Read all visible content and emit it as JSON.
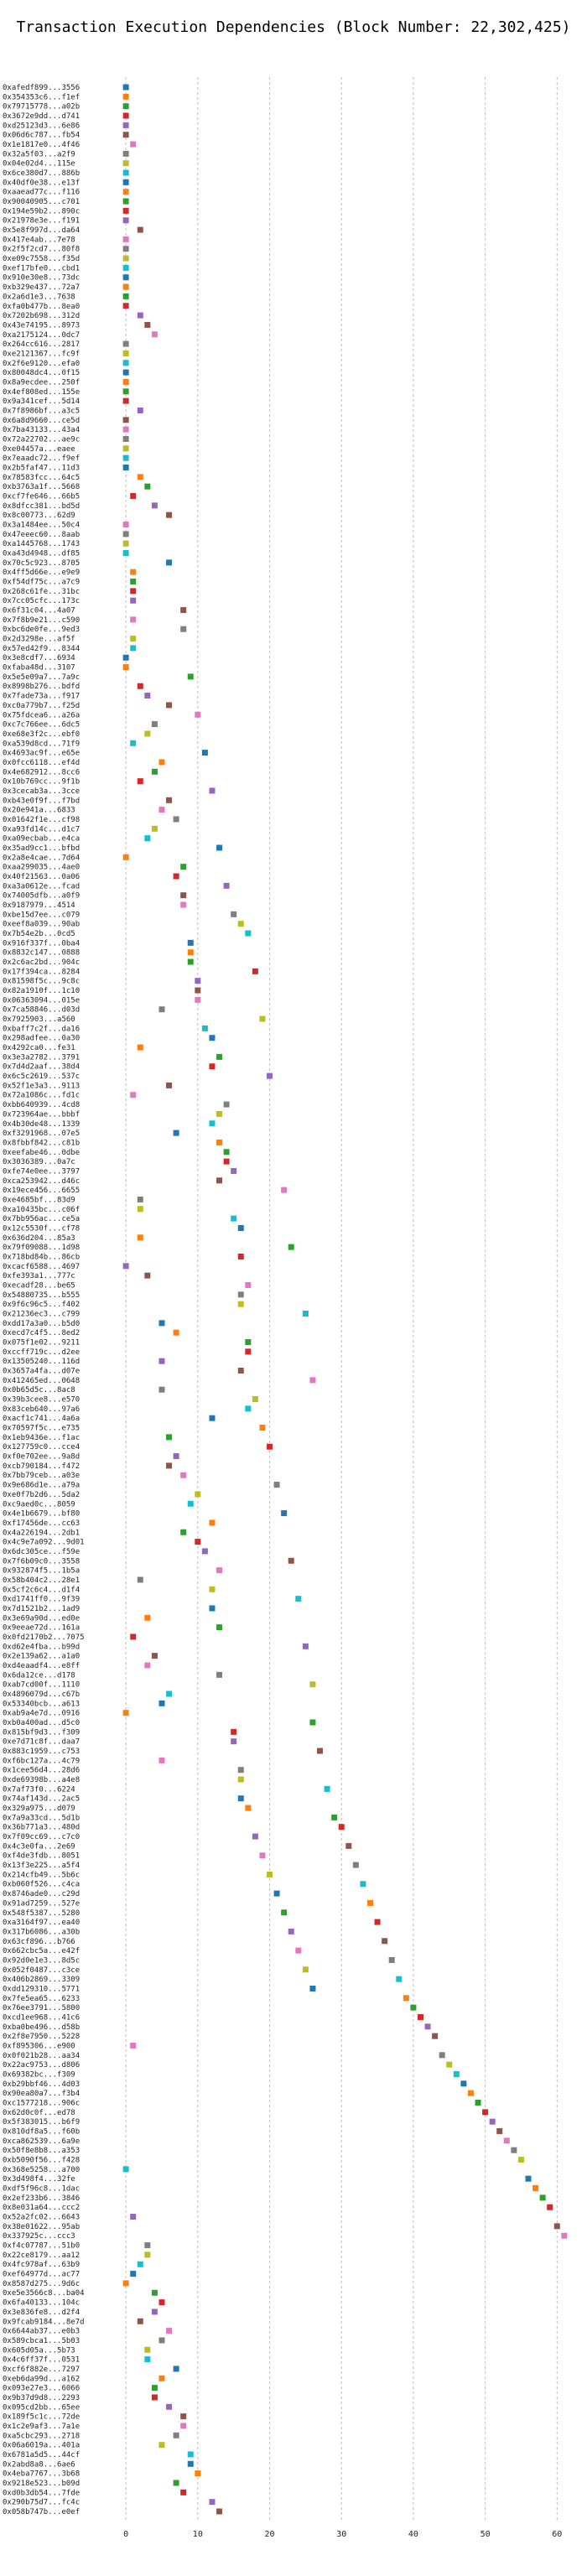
{
  "chart_data": {
    "type": "scatter",
    "title": "Transaction Execution Dependencies (Block Number: 22,302,425)",
    "xlabel": "",
    "ylabel": "",
    "xlim": [
      -2,
      63
    ],
    "xticks": [
      0,
      10,
      20,
      30,
      40,
      50,
      60
    ],
    "grid": true,
    "palette": [
      "#1f77b4",
      "#ff7f0e",
      "#2ca02c",
      "#d62728",
      "#9467bd",
      "#8c564b",
      "#e377c2",
      "#7f7f7f",
      "#bcbd22",
      "#17becf"
    ],
    "transactions": [
      {
        "label": "0xafedf899...3556",
        "x": 0
      },
      {
        "label": "0x354353c6...f1ef",
        "x": 0
      },
      {
        "label": "0x79715778...a02b",
        "x": 0
      },
      {
        "label": "0x3672e9dd...d741",
        "x": 0
      },
      {
        "label": "0xd25123d3...6e86",
        "x": 0
      },
      {
        "label": "0x06d6c787...fb54",
        "x": 0
      },
      {
        "label": "0x1e1817e0...4f46",
        "x": 1
      },
      {
        "label": "0x32a5f03...a2f9",
        "x": 0
      },
      {
        "label": "0x04e02d4...115e",
        "x": 0
      },
      {
        "label": "0x6ce380d7...886b",
        "x": 0
      },
      {
        "label": "0x40df0e38...e13f",
        "x": 0
      },
      {
        "label": "0xaaead77c...f116",
        "x": 0
      },
      {
        "label": "0x90040905...c701",
        "x": 0
      },
      {
        "label": "0x194e59b2...890c",
        "x": 0
      },
      {
        "label": "0x21978e3e...f191",
        "x": 0
      },
      {
        "label": "0x5e8f997d...da64",
        "x": 2
      },
      {
        "label": "0x417e4ab...7e78",
        "x": 0
      },
      {
        "label": "0x2f5f2cd7...80f8",
        "x": 0
      },
      {
        "label": "0xe09c7558...f35d",
        "x": 0
      },
      {
        "label": "0xef17bfe0...cbd1",
        "x": 0
      },
      {
        "label": "0x910e30e8...73dc",
        "x": 0
      },
      {
        "label": "0xb329e437...72a7",
        "x": 0
      },
      {
        "label": "0x2a6d1e3...7638",
        "x": 0
      },
      {
        "label": "0xfa0b477b...8ea0",
        "x": 0
      },
      {
        "label": "0x7202b698...312d",
        "x": 2
      },
      {
        "label": "0x43e74195...8973",
        "x": 3
      },
      {
        "label": "0xa2175124...0dc7",
        "x": 4
      },
      {
        "label": "0x264cc616...2817",
        "x": 0
      },
      {
        "label": "0xe2121367...fc9f",
        "x": 0
      },
      {
        "label": "0x2f6e9120...efa0",
        "x": 0
      },
      {
        "label": "0x80048dc4...0f15",
        "x": 0
      },
      {
        "label": "0x8a9ecdee...250f",
        "x": 0
      },
      {
        "label": "0x4ef808ed...155e",
        "x": 0
      },
      {
        "label": "0x9a341cef...5d14",
        "x": 0
      },
      {
        "label": "0x7f8986bf...a3c5",
        "x": 2
      },
      {
        "label": "0x6a8d9660...ce5d",
        "x": 0
      },
      {
        "label": "0x7ba43133...43a4",
        "x": 0
      },
      {
        "label": "0x72a22702...ae9c",
        "x": 0
      },
      {
        "label": "0xe04457a...eaee",
        "x": 0
      },
      {
        "label": "0x7eaadc72...f9ef",
        "x": 0
      },
      {
        "label": "0x2b5faf47...11d3",
        "x": 0
      },
      {
        "label": "0x78583fcc...64c5",
        "x": 2
      },
      {
        "label": "0xb3763a1f...5668",
        "x": 3
      },
      {
        "label": "0xcf7fe646...66b5",
        "x": 1
      },
      {
        "label": "0x8dfcc381...bd5d",
        "x": 4
      },
      {
        "label": "0x8c00773...62d9",
        "x": 6
      },
      {
        "label": "0x3a1484ee...50c4",
        "x": 0
      },
      {
        "label": "0x47eeec60...8aab",
        "x": 0
      },
      {
        "label": "0xa1445768...1743",
        "x": 0
      },
      {
        "label": "0xa43d4948...df85",
        "x": 0
      },
      {
        "label": "0x70c5c923...8705",
        "x": 6
      },
      {
        "label": "0x4ff5d66e...e9e9",
        "x": 1
      },
      {
        "label": "0xf54df75c...a7c9",
        "x": 1
      },
      {
        "label": "0x268c61fe...31bc",
        "x": 1
      },
      {
        "label": "0x7cc05cfc...173c",
        "x": 1
      },
      {
        "label": "0x6f31c04...4a07",
        "x": 8
      },
      {
        "label": "0x7f8b9e21...c590",
        "x": 1
      },
      {
        "label": "0xbc6de0fe...9ed3",
        "x": 8
      },
      {
        "label": "0x2d3298e...af5f",
        "x": 1
      },
      {
        "label": "0x57ed42f9...8344",
        "x": 1
      },
      {
        "label": "0x3e8cdf7...6934",
        "x": 0
      },
      {
        "label": "0xfaba48d...3107",
        "x": 0
      },
      {
        "label": "0x5e5e09a7...7a9c",
        "x": 9
      },
      {
        "label": "0x8998b276...bdfd",
        "x": 2
      },
      {
        "label": "0x7fade73a...f917",
        "x": 3
      },
      {
        "label": "0xc0a779b7...f25d",
        "x": 6
      },
      {
        "label": "0x75fdcea6...a26a",
        "x": 10
      },
      {
        "label": "0xc7c766ee...6dc5",
        "x": 4
      },
      {
        "label": "0xe68e3f2c...ebf0",
        "x": 3
      },
      {
        "label": "0xa539d8cd...71f9",
        "x": 1
      },
      {
        "label": "0x4693ac9f...e65e",
        "x": 11
      },
      {
        "label": "0x0fcc6118...ef4d",
        "x": 5
      },
      {
        "label": "0x4e682912...8cc6",
        "x": 4
      },
      {
        "label": "0x10b769cc...9f1b",
        "x": 2
      },
      {
        "label": "0x3cecab3a...3cce",
        "x": 12
      },
      {
        "label": "0xb43e0f9f...f7bd",
        "x": 6
      },
      {
        "label": "0x20e941a...6833",
        "x": 5
      },
      {
        "label": "0x01642f1e...cf98",
        "x": 7
      },
      {
        "label": "0xa93fd14c...d1c7",
        "x": 4
      },
      {
        "label": "0xa09ecbab...e4ca",
        "x": 3
      },
      {
        "label": "0x35ad9cc1...bfbd",
        "x": 13
      },
      {
        "label": "0x2a8e4cae...7d64",
        "x": 0
      },
      {
        "label": "0xaa299035...4ae0",
        "x": 8
      },
      {
        "label": "0x40f21563...0a06",
        "x": 7
      },
      {
        "label": "0xa3a0612e...fcad",
        "x": 14
      },
      {
        "label": "0x74005dfb...a0f9",
        "x": 8
      },
      {
        "label": "0x9187979...4514",
        "x": 8
      },
      {
        "label": "0xbe15d7ee...c079",
        "x": 15
      },
      {
        "label": "0xeef8a039...90ab",
        "x": 16
      },
      {
        "label": "0x7b54e2b...0cd5",
        "x": 17
      },
      {
        "label": "0x916f337f...0ba4",
        "x": 9
      },
      {
        "label": "0x8832c147...0888",
        "x": 9
      },
      {
        "label": "0x2c6ac2bd...904c",
        "x": 9
      },
      {
        "label": "0x17f394ca...8284",
        "x": 18
      },
      {
        "label": "0x81598f5c...9c8c",
        "x": 10
      },
      {
        "label": "0x82a1910f...1c10",
        "x": 10
      },
      {
        "label": "0x06363094...015e",
        "x": 10
      },
      {
        "label": "0x7ca58846...d03d",
        "x": 5
      },
      {
        "label": "0x7925903...a560",
        "x": 19
      },
      {
        "label": "0xbaff7c2f...da16",
        "x": 11
      },
      {
        "label": "0x298adfee...0a30",
        "x": 12
      },
      {
        "label": "0x4292ca0...fe31",
        "x": 2
      },
      {
        "label": "0x3e3a2782...3791",
        "x": 13
      },
      {
        "label": "0x7d4d2aaf...38d4",
        "x": 12
      },
      {
        "label": "0x6c5c2619...537c",
        "x": 20
      },
      {
        "label": "0x52f1e3a3...9113",
        "x": 6
      },
      {
        "label": "0x72a1086c...fd1c",
        "x": 1
      },
      {
        "label": "0xbb640939...4cd8",
        "x": 14
      },
      {
        "label": "0x723964ae...bbbf",
        "x": 13
      },
      {
        "label": "0x4b30de48...1339",
        "x": 12
      },
      {
        "label": "0xf3291968...07e5",
        "x": 7
      },
      {
        "label": "0x8fbbf842...c81b",
        "x": 13
      },
      {
        "label": "0xeefabe46...0dbe",
        "x": 14
      },
      {
        "label": "0x3036389...0a7c",
        "x": 14
      },
      {
        "label": "0xfe74e0ee...3797",
        "x": 15
      },
      {
        "label": "0xca253942...d46c",
        "x": 13
      },
      {
        "label": "0x19ece456...6655",
        "x": 22
      },
      {
        "label": "0xe4685bf...83d9",
        "x": 2
      },
      {
        "label": "0xa10435bc...c06f",
        "x": 2
      },
      {
        "label": "0x7bb956ac...ce5a",
        "x": 15
      },
      {
        "label": "0x12c5530f...cf78",
        "x": 16
      },
      {
        "label": "0x636d204...85a3",
        "x": 2
      },
      {
        "label": "0x79f09088...1d98",
        "x": 23
      },
      {
        "label": "0x718bd84b...86cb",
        "x": 16
      },
      {
        "label": "0xcacf6588...4697",
        "x": 0
      },
      {
        "label": "0xfe393a1...777c",
        "x": 3
      },
      {
        "label": "0xecadf28...be65",
        "x": 17
      },
      {
        "label": "0x54880735...b555",
        "x": 16
      },
      {
        "label": "0x9f6c96c5...f402",
        "x": 16
      },
      {
        "label": "0x21236ec3...c799",
        "x": 25
      },
      {
        "label": "0xdd17a3a0...b5d0",
        "x": 5
      },
      {
        "label": "0xecd7c4f5...8ed2",
        "x": 7
      },
      {
        "label": "0x075f1e02...9211",
        "x": 17
      },
      {
        "label": "0xccff719c...d2ee",
        "x": 17
      },
      {
        "label": "0x13505240...116d",
        "x": 5
      },
      {
        "label": "0x3657a4fa...d07e",
        "x": 16
      },
      {
        "label": "0x412465ed...0648",
        "x": 26
      },
      {
        "label": "0x0b65d5c...8ac8",
        "x": 5
      },
      {
        "label": "0x39b3cee8...e570",
        "x": 18
      },
      {
        "label": "0x83ceb640...97a6",
        "x": 17
      },
      {
        "label": "0xacf1c741...4a6a",
        "x": 12
      },
      {
        "label": "0x70597f5c...e735",
        "x": 19
      },
      {
        "label": "0x1eb9436e...f1ac",
        "x": 6
      },
      {
        "label": "0x127759c0...cce4",
        "x": 20
      },
      {
        "label": "0xf0e702ee...9a8d",
        "x": 7
      },
      {
        "label": "0xcb790184...f472",
        "x": 6
      },
      {
        "label": "0x7bb79ceb...a03e",
        "x": 8
      },
      {
        "label": "0x9e686d1e...a79a",
        "x": 21
      },
      {
        "label": "0xe0f7b2d6...5da2",
        "x": 10
      },
      {
        "label": "0xc9aed0c...8059",
        "x": 9
      },
      {
        "label": "0x4e1b6679...bf80",
        "x": 22
      },
      {
        "label": "0xf17456de...cc63",
        "x": 12
      },
      {
        "label": "0x4a226194...2db1",
        "x": 8
      },
      {
        "label": "0x4c9e7a092...9d01",
        "x": 10
      },
      {
        "label": "0x6dc305ce...f59e",
        "x": 11
      },
      {
        "label": "0x7f6b09c0...3558",
        "x": 23
      },
      {
        "label": "0x932874f5...1b5a",
        "x": 13
      },
      {
        "label": "0x58b404c2...28e1",
        "x": 2
      },
      {
        "label": "0x5cf2c6c4...d1f4",
        "x": 12
      },
      {
        "label": "0xd1741ff0...9f39",
        "x": 24
      },
      {
        "label": "0x7d1521b2...1ad9",
        "x": 12
      },
      {
        "label": "0x3e69a90d...ed0e",
        "x": 3
      },
      {
        "label": "0x9eeae72d...161a",
        "x": 13
      },
      {
        "label": "0x0fd2170b2...7075",
        "x": 1
      },
      {
        "label": "0xd62e4fba...b99d",
        "x": 25
      },
      {
        "label": "0x2e139a62...a1a0",
        "x": 4
      },
      {
        "label": "0xd4eaadf4...e8ff",
        "x": 3
      },
      {
        "label": "0x6da12ce...d178",
        "x": 13
      },
      {
        "label": "0xab7cd00f...1110",
        "x": 26
      },
      {
        "label": "0x4896079d...c67b",
        "x": 6
      },
      {
        "label": "0x53340bcb...a613",
        "x": 5
      },
      {
        "label": "0xab9a4e7d...0916",
        "x": 0
      },
      {
        "label": "0xb0a400ad...d5c0",
        "x": 26
      },
      {
        "label": "0x815bf9d3...f309",
        "x": 15
      },
      {
        "label": "0xe7d71c8f...daa7",
        "x": 15
      },
      {
        "label": "0x883c1959...c753",
        "x": 27
      },
      {
        "label": "0xf6bc127a...4c79",
        "x": 5
      },
      {
        "label": "0x1cee56d4...28d6",
        "x": 16
      },
      {
        "label": "0xde69398b...a4e8",
        "x": 16
      },
      {
        "label": "0x7af73f0...6224",
        "x": 28
      },
      {
        "label": "0x74af143d...2ac5",
        "x": 16
      },
      {
        "label": "0x329a975...d079",
        "x": 17
      },
      {
        "label": "0x7a9a33cd...5d1b",
        "x": 29
      },
      {
        "label": "0x36b771a3...480d",
        "x": 30
      },
      {
        "label": "0x7f09cc69...c7c0",
        "x": 18
      },
      {
        "label": "0x4c3e0fa...2e69",
        "x": 31
      },
      {
        "label": "0xf4de3fdb...8051",
        "x": 19
      },
      {
        "label": "0x13f3e225...a5f4",
        "x": 32
      },
      {
        "label": "0x214cfb49...5b6c",
        "x": 20
      },
      {
        "label": "0xb060f526...c4ca",
        "x": 33
      },
      {
        "label": "0x8746ade0...c29d",
        "x": 21
      },
      {
        "label": "0x91ad7259...527e",
        "x": 34
      },
      {
        "label": "0x548f5387...5280",
        "x": 22
      },
      {
        "label": "0xa3164f97...ea40",
        "x": 35
      },
      {
        "label": "0x317b6086...a30b",
        "x": 23
      },
      {
        "label": "0x63cf896...b766",
        "x": 36
      },
      {
        "label": "0x662cbc5a...e42f",
        "x": 24
      },
      {
        "label": "0x92d0e1e3...8d5c",
        "x": 37
      },
      {
        "label": "0x052f0487...c3ce",
        "x": 25
      },
      {
        "label": "0x406b2869...3309",
        "x": 38
      },
      {
        "label": "0xdd129310...5771",
        "x": 26
      },
      {
        "label": "0x7fe5ea65...6233",
        "x": 39
      },
      {
        "label": "0x76ee3791...5800",
        "x": 40
      },
      {
        "label": "0xcd1ee968...41c6",
        "x": 41
      },
      {
        "label": "0xba0be496...d58b",
        "x": 42
      },
      {
        "label": "0x2f8e7950...5228",
        "x": 43
      },
      {
        "label": "0xf895306...e900",
        "x": 1
      },
      {
        "label": "0x0f021b28...aa34",
        "x": 44
      },
      {
        "label": "0x22ac9753...d806",
        "x": 45
      },
      {
        "label": "0x69382bc...f309",
        "x": 46
      },
      {
        "label": "0xb29bbf46...4d03",
        "x": 47
      },
      {
        "label": "0x90ea80a7...f3b4",
        "x": 48
      },
      {
        "label": "0xc1577218...906c",
        "x": 49
      },
      {
        "label": "0x62d0c0f...ed78",
        "x": 50
      },
      {
        "label": "0x5f383015...b6f9",
        "x": 51
      },
      {
        "label": "0x810df8a5...f60b",
        "x": 52
      },
      {
        "label": "0xca862539...6a9e",
        "x": 53
      },
      {
        "label": "0x50f8e8b8...a353",
        "x": 54
      },
      {
        "label": "0xb5090f56...f428",
        "x": 55
      },
      {
        "label": "0x368e5258...a700",
        "x": 0
      },
      {
        "label": "0x3d498f4...32fe",
        "x": 56
      },
      {
        "label": "0xdf5f96c8...1dac",
        "x": 57
      },
      {
        "label": "0x2ef233b6...3846",
        "x": 58
      },
      {
        "label": "0x8e031a64...ccc2",
        "x": 59
      },
      {
        "label": "0x52a2fc02...6643",
        "x": 1
      },
      {
        "label": "0x38e01622...95ab",
        "x": 60
      },
      {
        "label": "0x337925c...ccc3",
        "x": 61
      },
      {
        "label": "0xf4c07787...51b0",
        "x": 3
      },
      {
        "label": "0x22ce8179...aa12",
        "x": 3
      },
      {
        "label": "0x4fc978af...63b9",
        "x": 2
      },
      {
        "label": "0xef64977d...ac77",
        "x": 1
      },
      {
        "label": "0x8587d275...9d6c",
        "x": 0
      },
      {
        "label": "0xe5e3566c8...ba04",
        "x": 4
      },
      {
        "label": "0x6fa40133...104c",
        "x": 5
      },
      {
        "label": "0x3e836fe8...d2f4",
        "x": 4
      },
      {
        "label": "0x9fcab9184...8e7d",
        "x": 2
      },
      {
        "label": "0x6644ab37...e0b3",
        "x": 6
      },
      {
        "label": "0x589cbca1...5b03",
        "x": 5
      },
      {
        "label": "0x605d05a...5b73",
        "x": 3
      },
      {
        "label": "0x4c6ff37f...0531",
        "x": 3
      },
      {
        "label": "0xcf6f882e...7297",
        "x": 7
      },
      {
        "label": "0xeb6da99d...a162",
        "x": 5
      },
      {
        "label": "0x093e27e3...6066",
        "x": 4
      },
      {
        "label": "0x9b37d9d8...2293",
        "x": 4
      },
      {
        "label": "0x095cd2bb...65ee",
        "x": 6
      },
      {
        "label": "0x189f5c1c...72de",
        "x": 8
      },
      {
        "label": "0x1c2e9af3...7a1e",
        "x": 8
      },
      {
        "label": "0xa5cbc293...2718",
        "x": 7
      },
      {
        "label": "0x06a6019a...401a",
        "x": 5
      },
      {
        "label": "0x6781a5d5...44cf",
        "x": 9
      },
      {
        "label": "0x2abd8a8...6ae6",
        "x": 9
      },
      {
        "label": "0x4eba7767...3b68",
        "x": 10
      },
      {
        "label": "0x9218e523...b09d",
        "x": 7
      },
      {
        "label": "0xd0b3db54...7fde",
        "x": 8
      },
      {
        "label": "0x290b75d7...fc4c",
        "x": 12
      },
      {
        "label": "0x058b747b...e0ef",
        "x": 13
      }
    ]
  }
}
